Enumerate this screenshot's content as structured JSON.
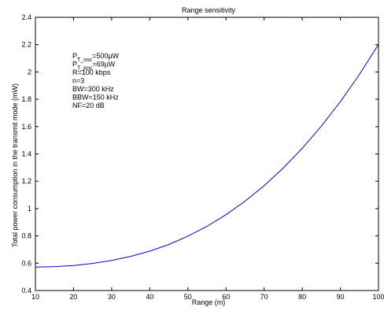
{
  "chart_data": {
    "type": "line",
    "title": "Range sensitivity",
    "xlabel": "Range (m)",
    "ylabel": "Total power consumption in the transmit mode (mW)",
    "xlim": [
      10,
      100
    ],
    "ylim": [
      0.4,
      2.4
    ],
    "xticks": [
      10,
      20,
      30,
      40,
      50,
      60,
      70,
      80,
      90,
      100
    ],
    "yticks": [
      0.4,
      0.6,
      0.8,
      1,
      1.2,
      1.4,
      1.6,
      1.8,
      2,
      2.2,
      2.4
    ],
    "grid": false,
    "series": [
      {
        "color": "#0000cc",
        "x": [
          10,
          15,
          20,
          25,
          30,
          35,
          40,
          45,
          50,
          55,
          60,
          65,
          70,
          75,
          80,
          85,
          90,
          95,
          100
        ],
        "y": [
          0.571,
          0.575,
          0.583,
          0.598,
          0.62,
          0.65,
          0.688,
          0.737,
          0.798,
          0.87,
          0.955,
          1.054,
          1.167,
          1.296,
          1.441,
          1.603,
          1.783,
          1.982,
          2.201
        ]
      }
    ],
    "annotations": [
      {
        "main": "P",
        "sub": "T_osc",
        "rest": "=500µW"
      },
      {
        "main": "P",
        "sub": "T_enc",
        "rest": "=69µW"
      },
      {
        "main": "R=100 kbps",
        "sub": "",
        "rest": ""
      },
      {
        "main": "n=3",
        "sub": "",
        "rest": ""
      },
      {
        "main": "BW=300 kHz",
        "sub": "",
        "rest": ""
      },
      {
        "main": "BBW=150 kHz",
        "sub": "",
        "rest": ""
      },
      {
        "main": "NF=20 dB",
        "sub": "",
        "rest": ""
      }
    ]
  }
}
